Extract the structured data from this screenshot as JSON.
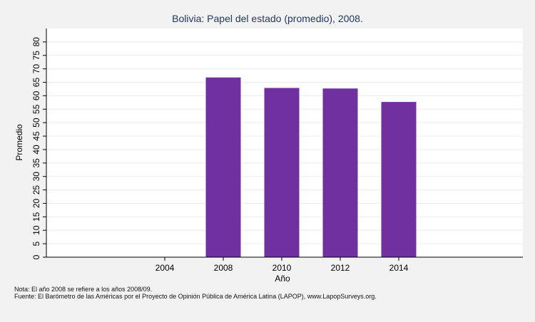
{
  "chart_data": {
    "type": "bar",
    "title": "Bolivia: Papel del estado (promedio), 2008.",
    "xlabel": "Año",
    "ylabel": "Promedio",
    "categories": [
      "2004",
      "2008",
      "2010",
      "2012",
      "2014"
    ],
    "values": [
      null,
      66.8,
      62.9,
      62.7,
      57.7
    ],
    "ylim": [
      0,
      85
    ],
    "yticks": [
      0,
      5,
      10,
      15,
      20,
      25,
      30,
      35,
      40,
      45,
      50,
      55,
      60,
      65,
      70,
      75,
      80
    ],
    "bar_color": "#7030a0",
    "grid": true,
    "legend": "none"
  },
  "notes": {
    "note": "Nota: El año 2008 se refiere a los años 2008/09.",
    "source": "Fuente: El Barómetro de las Américas por el Proyecto de Opinión Pública de América Latina (LAPOP), www.LapopSurveys.org."
  },
  "colors": {
    "background": "#f2f2f2",
    "plot_background": "#ffffff",
    "grid": "#ececec",
    "title": "#1f3864"
  }
}
